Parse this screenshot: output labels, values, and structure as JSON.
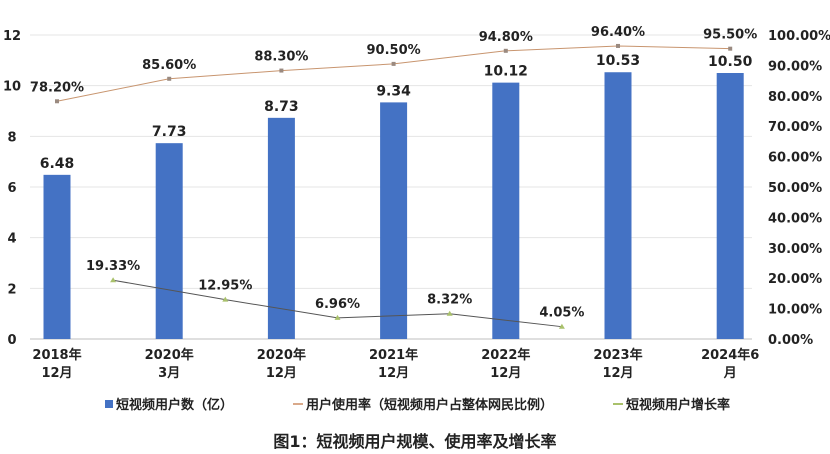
{
  "chart_data": {
    "type": "bar",
    "title": "图1：短视频用户规模、使用率及增长率",
    "categories": [
      [
        "2018年",
        "12月"
      ],
      [
        "2020年",
        "3月"
      ],
      [
        "2020年",
        "12月"
      ],
      [
        "2021年",
        "12月"
      ],
      [
        "2022年",
        "12月"
      ],
      [
        "2023年",
        "12月"
      ],
      [
        "2024年6",
        "月"
      ]
    ],
    "left_axis": {
      "ylim": [
        0,
        12
      ],
      "ticks": [
        "0",
        "2",
        "4",
        "6",
        "8",
        "10",
        "12"
      ]
    },
    "right_axis": {
      "ylim": [
        0,
        100
      ],
      "ticks": [
        "0.00%",
        "10.00%",
        "20.00%",
        "30.00%",
        "40.00%",
        "50.00%",
        "60.00%",
        "70.00%",
        "80.00%",
        "90.00%",
        "100.00%"
      ]
    },
    "grid": true,
    "legend_position": "bottom",
    "series": [
      {
        "name": "短视频用户数（亿）",
        "type": "bar",
        "axis": "left",
        "color": "#4472C4",
        "values": [
          6.48,
          7.73,
          8.73,
          9.34,
          10.12,
          10.53,
          10.5
        ],
        "labels": [
          "6.48",
          "7.73",
          "8.73",
          "9.34",
          "10.12",
          "10.53",
          "10.50"
        ]
      },
      {
        "name": "用户使用率（短视频用户占整体网民比例）",
        "type": "line",
        "axis": "right",
        "color": "#D9A98A",
        "values": [
          78.2,
          85.6,
          88.3,
          90.5,
          94.8,
          96.4,
          95.5
        ],
        "labels": [
          "78.20%",
          "85.60%",
          "88.30%",
          "90.50%",
          "94.80%",
          "96.40%",
          "95.50%"
        ]
      },
      {
        "name": "短视频用户增长率",
        "type": "line",
        "axis": "right",
        "color": "#A9C16B",
        "positions": [
          0.5,
          1.5,
          2.5,
          3.5,
          4.5
        ],
        "values": [
          19.33,
          12.95,
          6.96,
          8.32,
          4.05
        ],
        "labels": [
          "19.33%",
          "12.95%",
          "6.96%",
          "8.32%",
          "4.05%"
        ]
      }
    ]
  }
}
